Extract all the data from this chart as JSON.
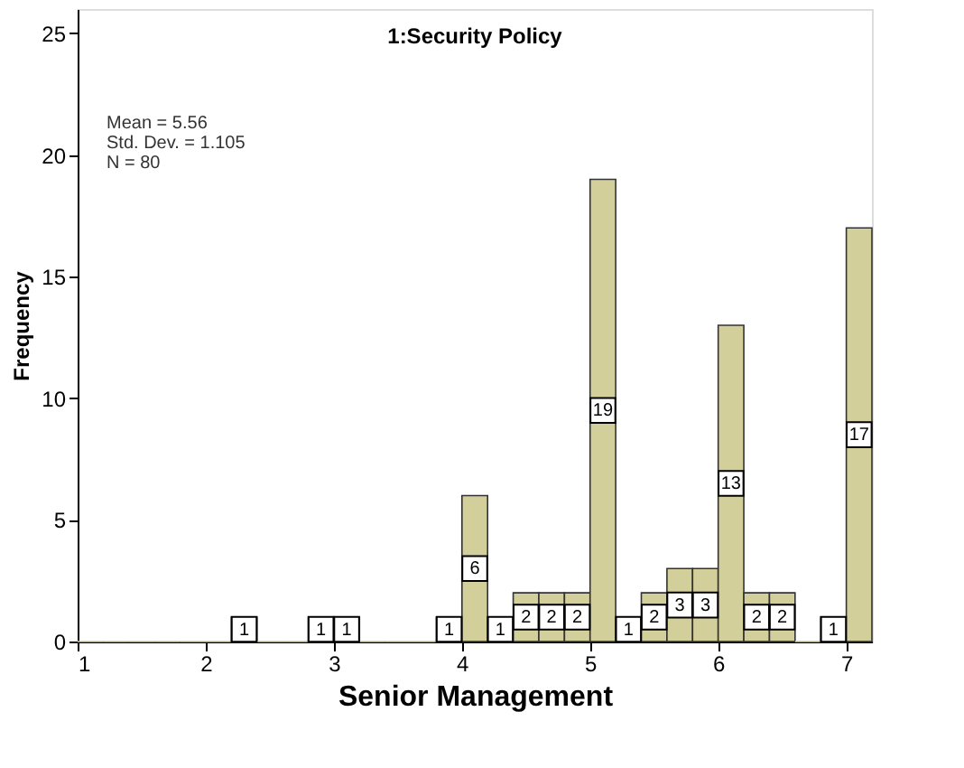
{
  "chart_data": {
    "type": "histogram",
    "title": "1:Security Policy",
    "xlabel": "Senior Management",
    "ylabel": "Frequency",
    "bins": [
      1.0,
      1.2,
      1.4,
      1.6,
      1.8,
      2.0,
      2.2,
      2.4,
      2.6,
      2.8,
      3.0,
      3.2,
      3.4,
      3.6,
      3.8,
      4.0,
      4.2,
      4.4,
      4.6,
      4.8,
      5.0,
      5.2,
      5.4,
      5.6,
      5.8,
      6.0,
      6.2,
      6.4,
      6.6,
      6.8,
      7.0,
      7.2
    ],
    "values": [
      0,
      0,
      0,
      0,
      0,
      0,
      1,
      0,
      0,
      1,
      1,
      0,
      0,
      0,
      1,
      6,
      1,
      2,
      2,
      2,
      19,
      1,
      2,
      3,
      3,
      13,
      2,
      2,
      0,
      1,
      17
    ],
    "value_labels": [
      null,
      null,
      null,
      null,
      null,
      null,
      "1",
      null,
      null,
      "1",
      "1",
      null,
      null,
      null,
      "1",
      "6",
      "1",
      "2",
      "2",
      "2",
      "19",
      "1",
      "2",
      "3",
      "3",
      "13",
      "2",
      "2",
      null,
      "1",
      "17"
    ],
    "color": "#d3cf9b",
    "xlim": [
      1,
      7.2
    ],
    "xticks": [
      1,
      2,
      3,
      4,
      5,
      6,
      7
    ],
    "ylim": [
      0,
      26
    ],
    "yticks": [
      0,
      5,
      10,
      15,
      20,
      25
    ],
    "grid": false,
    "annotations": [
      "Mean = 5.56",
      "Std. Dev. = 1.105",
      "N = 80"
    ]
  }
}
